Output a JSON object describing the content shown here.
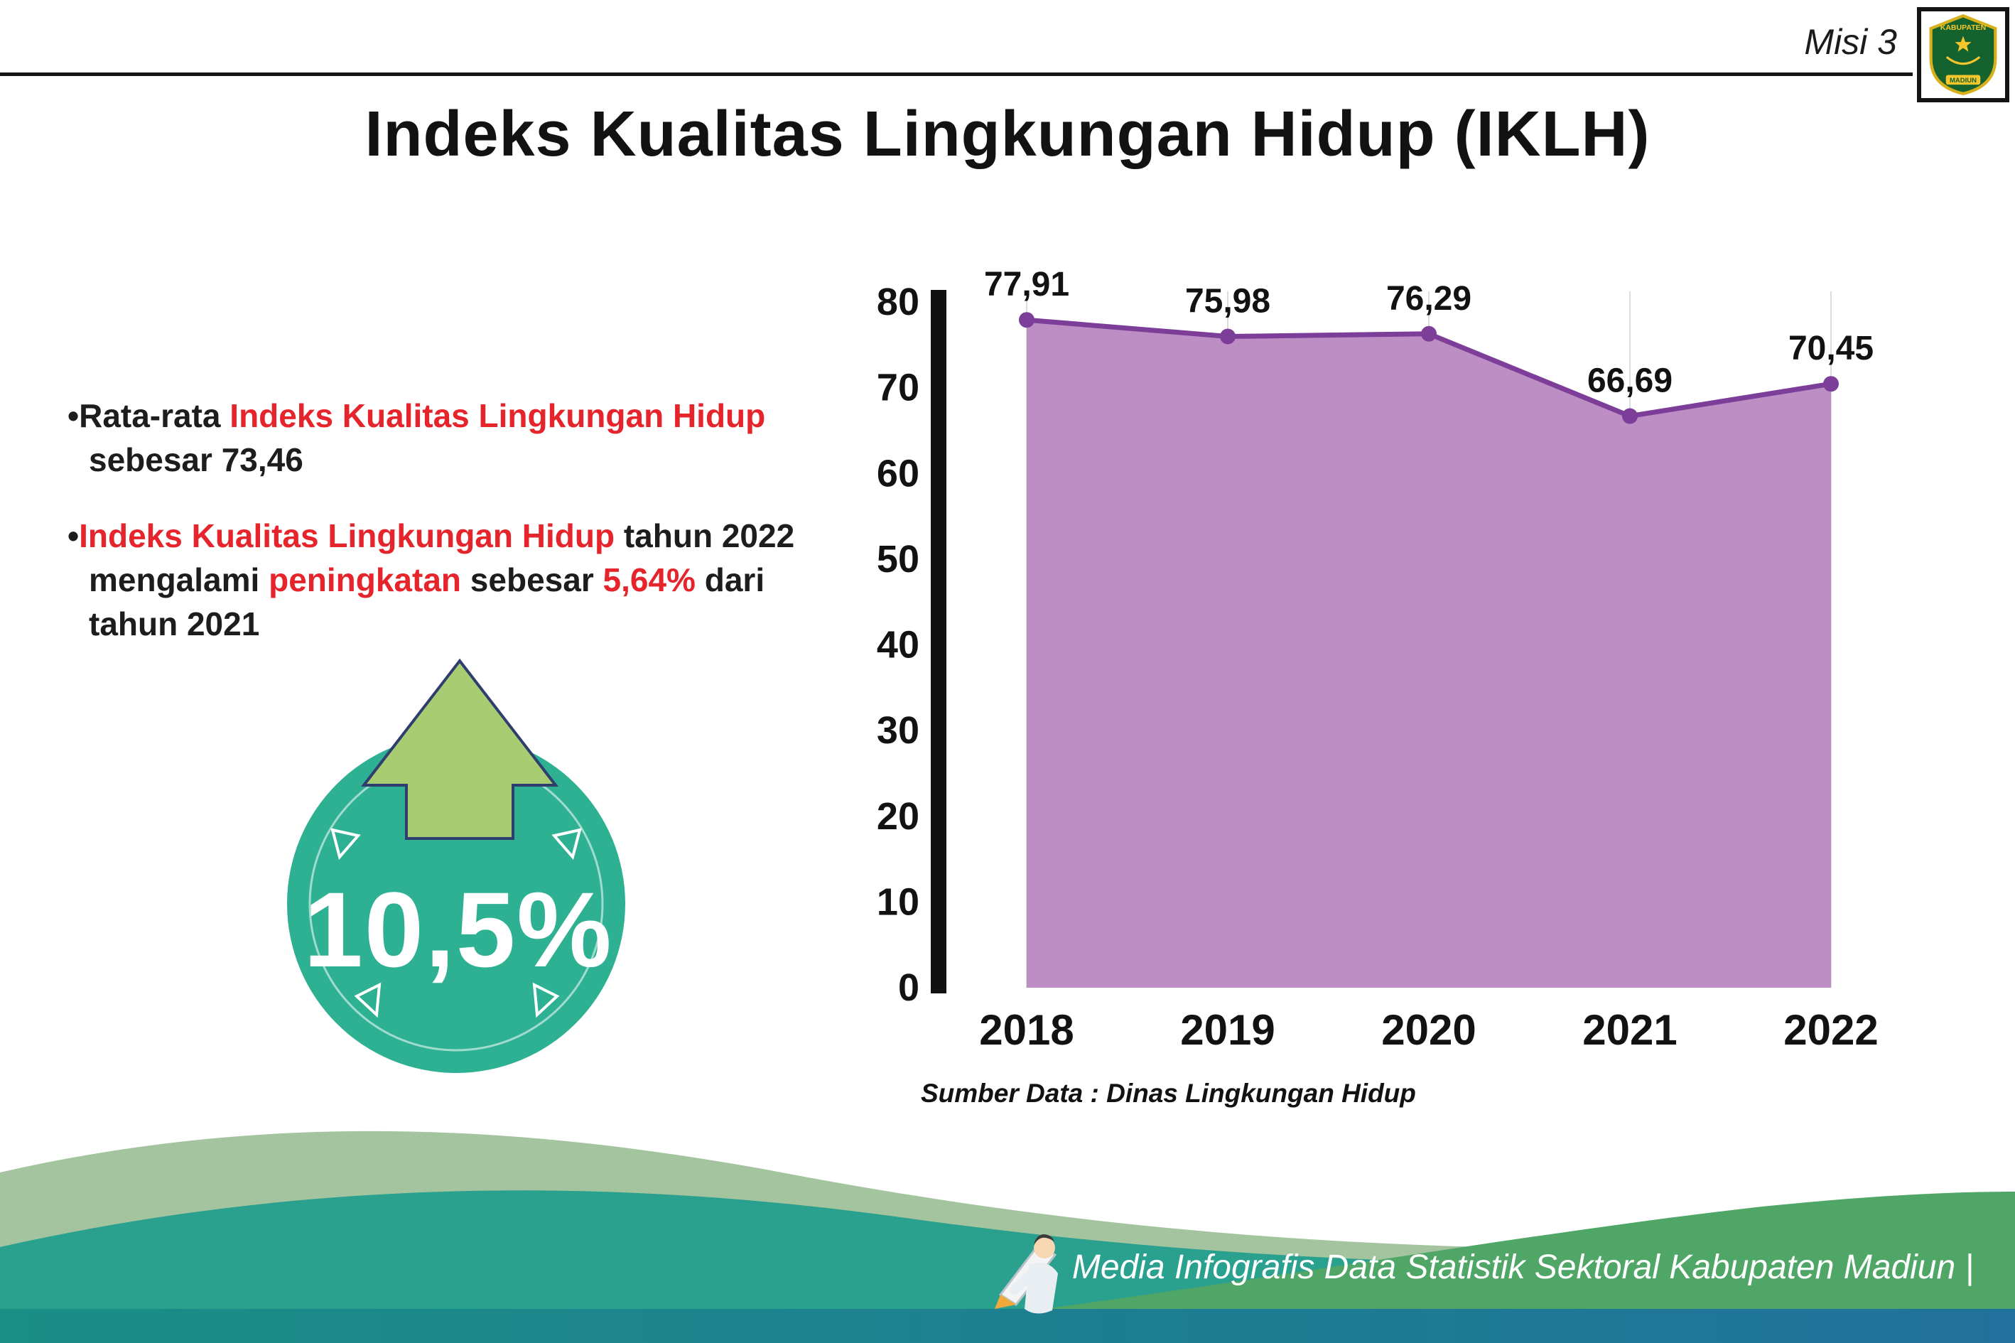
{
  "colors": {
    "red": "#e5242c",
    "black": "#1d1d1f",
    "teal": "#2eb193",
    "arrow_green": "#a8cc71",
    "purple_fill": "#bd8ec4",
    "purple_line": "#7c3e98"
  },
  "header": {
    "misi_label": "Misi 3",
    "title": "Indeks Kualitas Lingkungan Hidup (IKLH)",
    "logo_text_top": "KABUPATEN",
    "logo_text_bottom": "MADIUN"
  },
  "bullets": [
    {
      "segments": [
        {
          "t": "•Rata-rata ",
          "c": "black"
        },
        {
          "t": "Indeks Kualitas Lingkungan Hidup",
          "c": "red"
        },
        {
          "t": " sebesar 73,46",
          "c": "black"
        }
      ]
    },
    {
      "segments": [
        {
          "t": "•",
          "c": "black"
        },
        {
          "t": "Indeks Kualitas Lingkungan Hidup",
          "c": "red"
        },
        {
          "t": " tahun 2022 mengalami ",
          "c": "black"
        },
        {
          "t": "peningkatan",
          "c": "red"
        },
        {
          "t": " sebesar ",
          "c": "black"
        },
        {
          "t": "5,64%",
          "c": "red"
        },
        {
          "t": " dari tahun 2021",
          "c": "black"
        }
      ]
    }
  ],
  "badge": {
    "value": "10,5%"
  },
  "chart_data": {
    "type": "area",
    "categories": [
      "2018",
      "2019",
      "2020",
      "2021",
      "2022"
    ],
    "values": [
      77.91,
      75.98,
      76.29,
      66.69,
      70.45
    ],
    "value_labels": [
      "77,91",
      "75,98",
      "76,29",
      "66,69",
      "70,45"
    ],
    "ylim": [
      0,
      80
    ],
    "yticks": [
      0,
      10,
      20,
      30,
      40,
      50,
      60,
      70,
      80
    ],
    "grid": true,
    "legend": "none",
    "fill_color": "#bd8ec4",
    "line_color": "#7c3e98",
    "source": "Sumber Data : Dinas Lingkungan Hidup"
  },
  "footer": {
    "credit": "Media Infografis Data Statistik Sektoral Kabupaten Madiun |"
  }
}
